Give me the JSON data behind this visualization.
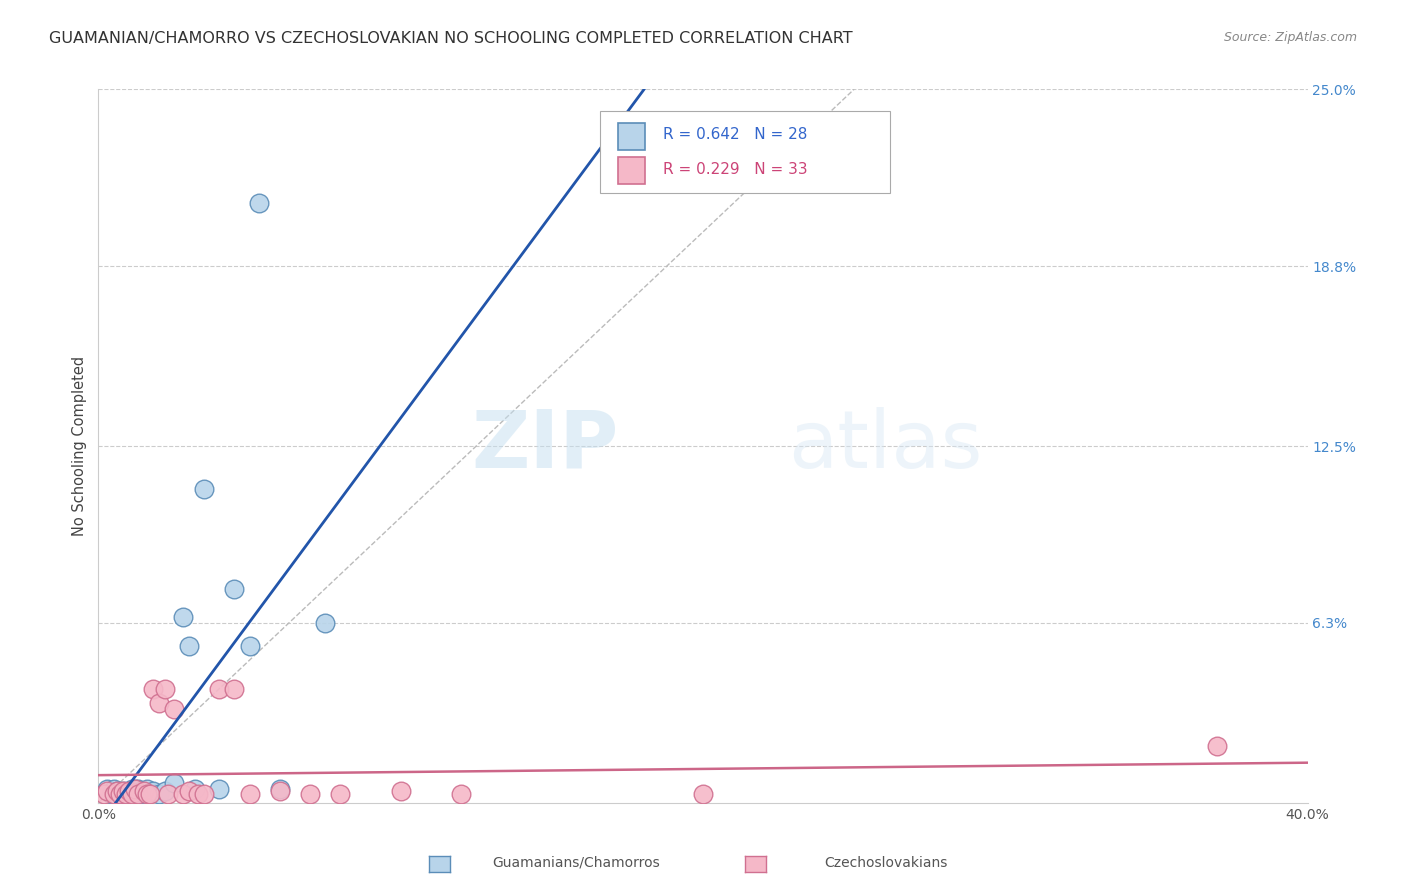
{
  "title": "GUAMANIAN/CHAMORRO VS CZECHOSLOVAKIAN NO SCHOOLING COMPLETED CORRELATION CHART",
  "source": "Source: ZipAtlas.com",
  "ylabel": "No Schooling Completed",
  "xlim": [
    0.0,
    0.4
  ],
  "ylim": [
    0.0,
    0.25
  ],
  "xtick_vals": [
    0.0,
    0.4
  ],
  "xtick_labels": [
    "0.0%",
    "40.0%"
  ],
  "ytick_labels": [
    "25.0%",
    "18.8%",
    "12.5%",
    "6.3%"
  ],
  "ytick_vals": [
    0.25,
    0.188,
    0.125,
    0.063
  ],
  "background_color": "#ffffff",
  "watermark_zip": "ZIP",
  "watermark_atlas": "atlas",
  "legend_r1": "R = 0.642",
  "legend_n1": "N = 28",
  "legend_r2": "R = 0.229",
  "legend_n2": "N = 33",
  "blue_face": "#b8d4ea",
  "blue_edge": "#5b8db8",
  "pink_face": "#f5b8c8",
  "pink_edge": "#d07090",
  "blue_line_color": "#2255aa",
  "pink_line_color": "#cc6688",
  "diagonal_color": "#bbbbbb",
  "grid_color": "#cccccc",
  "guamanian_x": [
    0.003,
    0.004,
    0.005,
    0.006,
    0.007,
    0.008,
    0.009,
    0.01,
    0.011,
    0.012,
    0.013,
    0.014,
    0.015,
    0.016,
    0.018,
    0.02,
    0.022,
    0.025,
    0.028,
    0.03,
    0.032,
    0.035,
    0.04,
    0.045,
    0.05,
    0.06,
    0.053,
    0.075
  ],
  "guamanian_y": [
    0.005,
    0.003,
    0.005,
    0.004,
    0.003,
    0.004,
    0.003,
    0.004,
    0.005,
    0.005,
    0.005,
    0.004,
    0.003,
    0.005,
    0.004,
    0.003,
    0.004,
    0.007,
    0.065,
    0.055,
    0.005,
    0.11,
    0.005,
    0.075,
    0.055,
    0.005,
    0.21,
    0.063
  ],
  "czechoslovakian_x": [
    0.002,
    0.003,
    0.005,
    0.006,
    0.007,
    0.008,
    0.009,
    0.01,
    0.011,
    0.012,
    0.013,
    0.015,
    0.016,
    0.017,
    0.018,
    0.02,
    0.022,
    0.023,
    0.025,
    0.028,
    0.03,
    0.033,
    0.035,
    0.04,
    0.045,
    0.05,
    0.06,
    0.07,
    0.08,
    0.1,
    0.12,
    0.2,
    0.37
  ],
  "czechoslovakian_y": [
    0.003,
    0.004,
    0.003,
    0.004,
    0.003,
    0.004,
    0.003,
    0.004,
    0.003,
    0.005,
    0.003,
    0.004,
    0.003,
    0.003,
    0.04,
    0.035,
    0.04,
    0.003,
    0.033,
    0.003,
    0.004,
    0.003,
    0.003,
    0.04,
    0.04,
    0.003,
    0.004,
    0.003,
    0.003,
    0.004,
    0.003,
    0.003,
    0.02
  ]
}
